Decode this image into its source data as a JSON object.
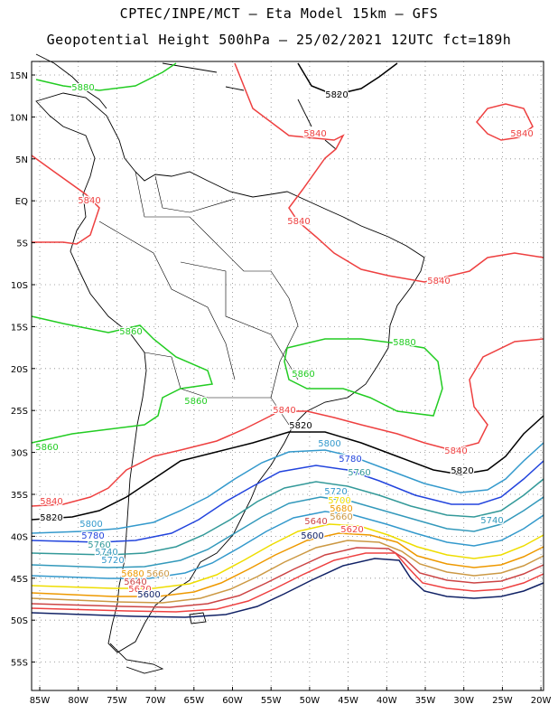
{
  "title_line1": "CPTEC/INPE/MCT –  Eta Model 15km – GFS",
  "title_line2": "Geopotential Height 500hPa – 25/02/2021 12UTC fct=189h",
  "lat_labels": [
    "15N",
    "10N",
    "5N",
    "EQ",
    "5S",
    "10S",
    "15S",
    "20S",
    "25S",
    "30S",
    "35S",
    "40S",
    "45S",
    "50S",
    "55S"
  ],
  "lon_labels": [
    "85W",
    "80W",
    "75W",
    "70W",
    "65W",
    "60W",
    "55W",
    "50W",
    "45W",
    "40W",
    "35W",
    "30W",
    "25W",
    "20W"
  ],
  "contours": [
    {
      "level": "5880",
      "color": "#22cc22"
    },
    {
      "level": "5860",
      "color": "#22cc22"
    },
    {
      "level": "5840",
      "color": "#ee4040"
    },
    {
      "level": "5820",
      "color": "#000000"
    },
    {
      "level": "5800",
      "color": "#3399cc"
    },
    {
      "level": "5780",
      "color": "#2244dd"
    },
    {
      "level": "5760",
      "color": "#339999"
    },
    {
      "level": "5740",
      "color": "#3399bb"
    },
    {
      "level": "5720",
      "color": "#3399cc"
    },
    {
      "level": "5700",
      "color": "#eedd00"
    },
    {
      "level": "5680",
      "color": "#ee9900"
    },
    {
      "level": "5660",
      "color": "#cc9944"
    },
    {
      "level": "5640",
      "color": "#cc4444"
    },
    {
      "level": "5620",
      "color": "#ee4040"
    },
    {
      "level": "5600",
      "color": "#112266"
    }
  ],
  "labels": [
    {
      "text": "5880",
      "color": "#22cc22"
    },
    {
      "text": "5820",
      "color": "#000000"
    },
    {
      "text": "5840",
      "color": "#ee4040"
    },
    {
      "text": "5840",
      "color": "#ee4040"
    },
    {
      "text": "5840",
      "color": "#ee4040"
    },
    {
      "text": "5840",
      "color": "#ee4040"
    },
    {
      "text": "5840",
      "color": "#ee4040"
    },
    {
      "text": "5860",
      "color": "#22cc22"
    },
    {
      "text": "5880",
      "color": "#22cc22"
    },
    {
      "text": "5860",
      "color": "#22cc22"
    },
    {
      "text": "5860",
      "color": "#22cc22"
    },
    {
      "text": "5840",
      "color": "#ee4040"
    },
    {
      "text": "5820",
      "color": "#000000"
    },
    {
      "text": "5860",
      "color": "#22cc22"
    },
    {
      "text": "5800",
      "color": "#3399cc"
    },
    {
      "text": "5840",
      "color": "#ee4040"
    },
    {
      "text": "5780",
      "color": "#2244dd"
    },
    {
      "text": "5760",
      "color": "#339999"
    },
    {
      "text": "5820",
      "color": "#000000"
    },
    {
      "text": "5840",
      "color": "#ee4040"
    },
    {
      "text": "5820",
      "color": "#000000"
    },
    {
      "text": "5720",
      "color": "#3399cc"
    },
    {
      "text": "5700",
      "color": "#eedd00"
    },
    {
      "text": "5680",
      "color": "#ee9900"
    },
    {
      "text": "5660",
      "color": "#cc9944"
    },
    {
      "text": "5740",
      "color": "#3399bb"
    },
    {
      "text": "5640",
      "color": "#cc4444"
    },
    {
      "text": "5620",
      "color": "#ee4040"
    },
    {
      "text": "5600",
      "color": "#112266"
    },
    {
      "text": "5800",
      "color": "#3399cc"
    },
    {
      "text": "5780",
      "color": "#2244dd"
    },
    {
      "text": "5760",
      "color": "#339999"
    },
    {
      "text": "5740",
      "color": "#3399bb"
    },
    {
      "text": "5720",
      "color": "#3399cc"
    },
    {
      "text": "5680",
      "color": "#ee9900"
    },
    {
      "text": "5660",
      "color": "#cc9944"
    },
    {
      "text": "5640",
      "color": "#cc4444"
    },
    {
      "text": "5620",
      "color": "#ee4040"
    },
    {
      "text": "5600",
      "color": "#112266"
    }
  ]
}
